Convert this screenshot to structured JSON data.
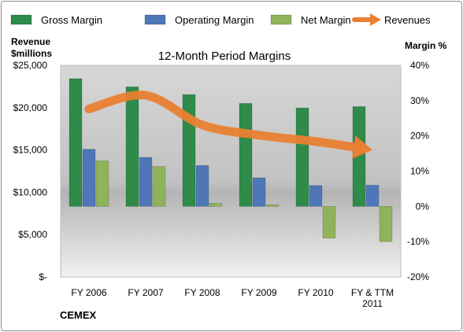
{
  "chart_data": {
    "type": "bar",
    "title": "12-Month Period Margins",
    "brand": "CEMEX",
    "left_axis": {
      "title_lines": [
        "Revenue",
        "$millions"
      ],
      "min": 0,
      "max": 25000,
      "ticks": [
        {
          "value": 0,
          "label": "$-"
        },
        {
          "value": 5000,
          "label": "$5,000"
        },
        {
          "value": 10000,
          "label": "$10,000"
        },
        {
          "value": 15000,
          "label": "$15,000"
        },
        {
          "value": 20000,
          "label": "$20,000"
        },
        {
          "value": 25000,
          "label": "$25,000"
        }
      ]
    },
    "right_axis": {
      "title": "Margin %",
      "min": -20,
      "max": 40,
      "ticks": [
        {
          "value": -20,
          "label": "-20%"
        },
        {
          "value": -10,
          "label": "-10%"
        },
        {
          "value": 0,
          "label": "0%"
        },
        {
          "value": 10,
          "label": "10%"
        },
        {
          "value": 20,
          "label": "20%"
        },
        {
          "value": 30,
          "label": "30%"
        },
        {
          "value": 40,
          "label": "40%"
        }
      ]
    },
    "categories": [
      [
        "FY 2006"
      ],
      [
        "FY 2007"
      ],
      [
        "FY 2008"
      ],
      [
        "FY 2009"
      ],
      [
        "FY 2010"
      ],
      [
        "FY & TTM",
        "2011"
      ]
    ],
    "series": [
      {
        "name": "Gross Margin",
        "axis": "right",
        "kind": "bar",
        "color": "#2e8b4a",
        "values": [
          36.2,
          33.9,
          31.7,
          29.2,
          27.9,
          28.3
        ]
      },
      {
        "name": "Operating Margin",
        "axis": "right",
        "kind": "bar",
        "color": "#4f77b8",
        "values": [
          16.2,
          13.9,
          11.6,
          8.1,
          5.9,
          6.0
        ]
      },
      {
        "name": "Net Margin",
        "axis": "right",
        "kind": "bar",
        "color": "#8fb35a",
        "values": [
          12.9,
          11.3,
          0.9,
          0.5,
          -9.0,
          -10.0
        ]
      },
      {
        "name": "Revenues",
        "axis": "left",
        "kind": "arrow",
        "color": "#e97f32",
        "values": [
          19850,
          21450,
          17950,
          16750,
          16000,
          15000
        ]
      }
    ],
    "legend_position": "top",
    "grid": false
  }
}
